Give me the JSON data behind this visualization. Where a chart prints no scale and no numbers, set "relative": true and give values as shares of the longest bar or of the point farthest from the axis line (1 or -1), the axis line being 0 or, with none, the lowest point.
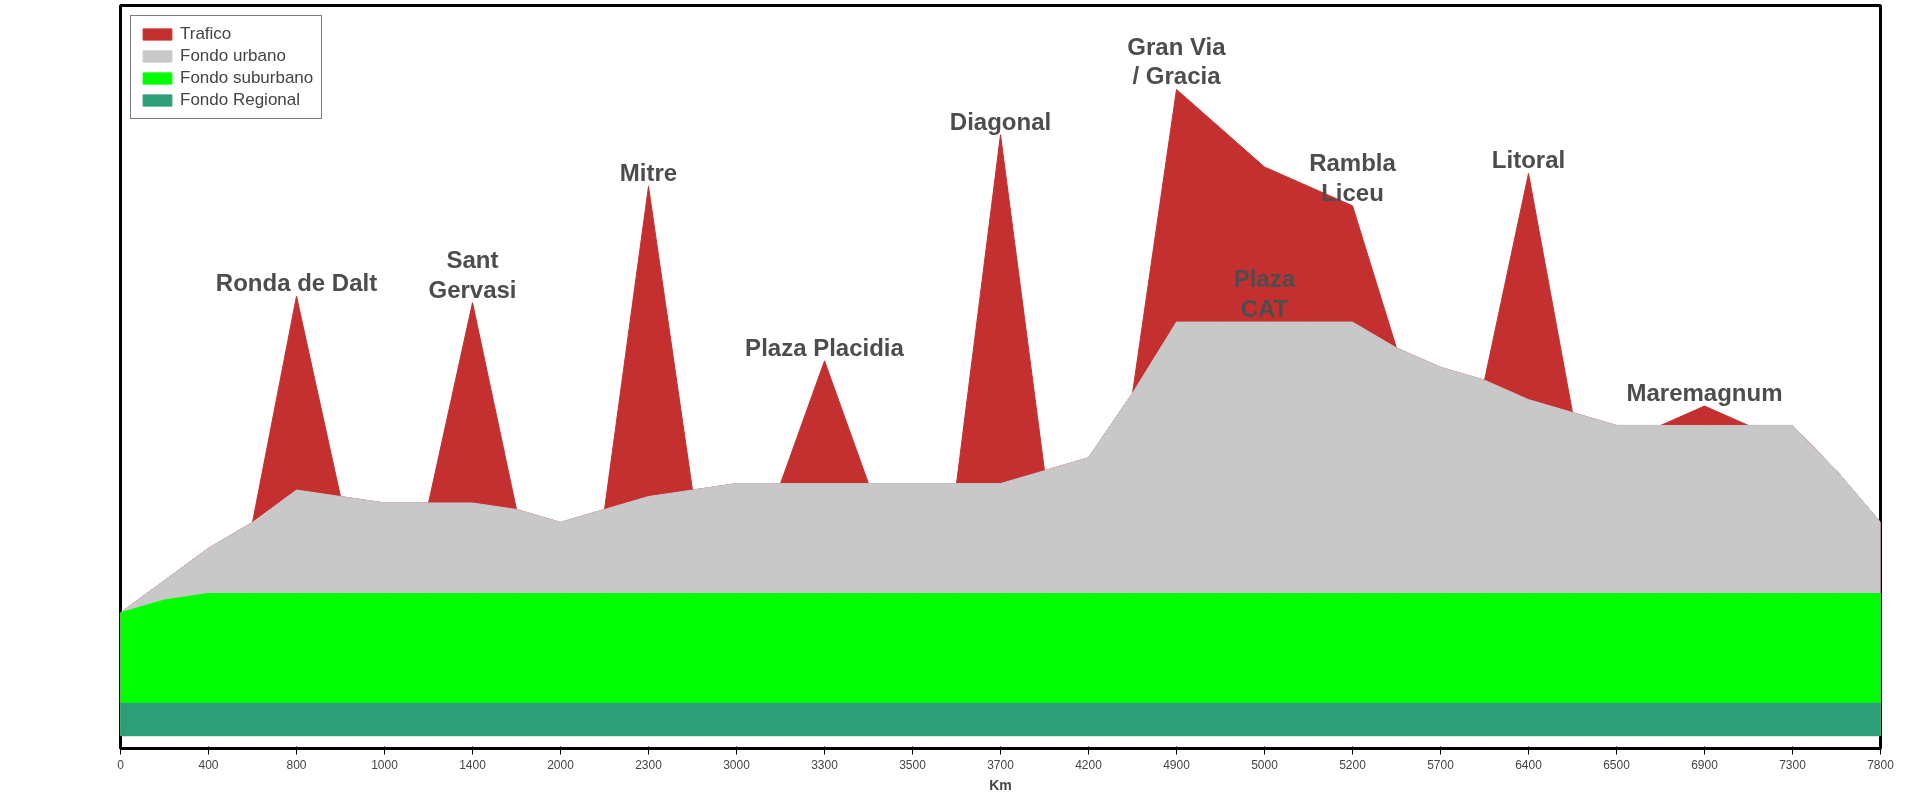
{
  "chart_data": {
    "type": "area",
    "relative": true,
    "xlabel": "Km",
    "legend": "top left",
    "grid": false,
    "categories": [
      "0",
      null,
      "400",
      null,
      "800",
      null,
      "1000",
      null,
      "1400",
      null,
      "2000",
      null,
      "2300",
      null,
      "3000",
      null,
      "3300",
      null,
      "3500",
      null,
      "3700",
      null,
      "4200",
      null,
      "4900",
      null,
      "5000",
      null,
      "5200",
      null,
      "5700",
      null,
      "6400",
      null,
      "6500",
      null,
      "6900",
      null,
      "7300",
      null,
      "7800"
    ],
    "series": [
      {
        "name": "Trafico",
        "color": "#c43030",
        "values": [
          0.19,
          null,
          0.29,
          0.33,
          0.68,
          0.37,
          0.36,
          0.36,
          0.67,
          0.35,
          0.33,
          0.35,
          0.85,
          0.38,
          0.39,
          0.39,
          0.58,
          0.39,
          0.39,
          0.39,
          0.93,
          0.41,
          0.43,
          0.53,
          1.0,
          0.94,
          0.88,
          0.85,
          0.82,
          0.6,
          0.57,
          0.55,
          0.87,
          0.5,
          0.48,
          0.48,
          0.51,
          0.48,
          0.48,
          0.41,
          0.33
        ]
      },
      {
        "name": "Fondo urbano",
        "color": "#c8c8c8",
        "values": [
          0.19,
          null,
          0.29,
          0.33,
          0.38,
          0.37,
          0.36,
          0.36,
          0.36,
          0.35,
          0.33,
          0.35,
          0.37,
          0.38,
          0.39,
          0.39,
          0.39,
          0.39,
          0.39,
          0.39,
          0.39,
          0.41,
          0.43,
          0.53,
          0.64,
          0.64,
          0.64,
          0.64,
          0.64,
          0.6,
          0.57,
          0.55,
          0.52,
          0.5,
          0.48,
          0.48,
          0.48,
          0.48,
          0.48,
          0.41,
          0.33
        ]
      },
      {
        "name": "Fondo suburbano",
        "color": "#00ff00",
        "values": [
          0.19,
          0.21,
          0.22,
          0.22,
          0.22,
          0.22,
          0.22,
          0.22,
          0.22,
          0.22,
          0.22,
          0.22,
          0.22,
          0.22,
          0.22,
          0.22,
          0.22,
          0.22,
          0.22,
          0.22,
          0.22,
          0.22,
          0.22,
          0.22,
          0.22,
          0.22,
          0.22,
          0.22,
          0.22,
          0.22,
          0.22,
          0.22,
          0.22,
          0.22,
          0.22,
          0.22,
          0.22,
          0.22,
          0.22,
          0.22,
          0.22
        ]
      },
      {
        "name": "Fondo Regional",
        "color": "#2e9e78",
        "values": [
          0.05,
          0.05,
          0.05,
          0.05,
          0.05,
          0.05,
          0.05,
          0.05,
          0.05,
          0.05,
          0.05,
          0.05,
          0.05,
          0.05,
          0.05,
          0.05,
          0.05,
          0.05,
          0.05,
          0.05,
          0.05,
          0.05,
          0.05,
          0.05,
          0.05,
          0.05,
          0.05,
          0.05,
          0.05,
          0.05,
          0.05,
          0.05,
          0.05,
          0.05,
          0.05,
          0.05,
          0.05,
          0.05,
          0.05,
          0.05,
          0.05
        ]
      }
    ],
    "annotations": [
      {
        "text": "Ronda de Dalt",
        "x": "800",
        "y": 0.68
      },
      {
        "text": "Sant\nGervasi",
        "x": "1400",
        "y": 0.67
      },
      {
        "text": "Mitre",
        "x": "2300",
        "y": 0.85
      },
      {
        "text": "Plaza Placidia",
        "x": "3300",
        "y": 0.58
      },
      {
        "text": "Diagonal",
        "x": "3700",
        "y": 0.93
      },
      {
        "text": "Gran Via\n/ Gracia",
        "x": "4900",
        "y": 1.0
      },
      {
        "text": "Plaza\nCAT",
        "x": "5000",
        "y": 0.64
      },
      {
        "text": "Rambla\nLiceu",
        "x": "5200",
        "y": 0.82
      },
      {
        "text": "Litoral",
        "x": "6400",
        "y": 0.87
      },
      {
        "text": "Maremagnum",
        "x": "6900",
        "y": 0.51
      }
    ]
  }
}
